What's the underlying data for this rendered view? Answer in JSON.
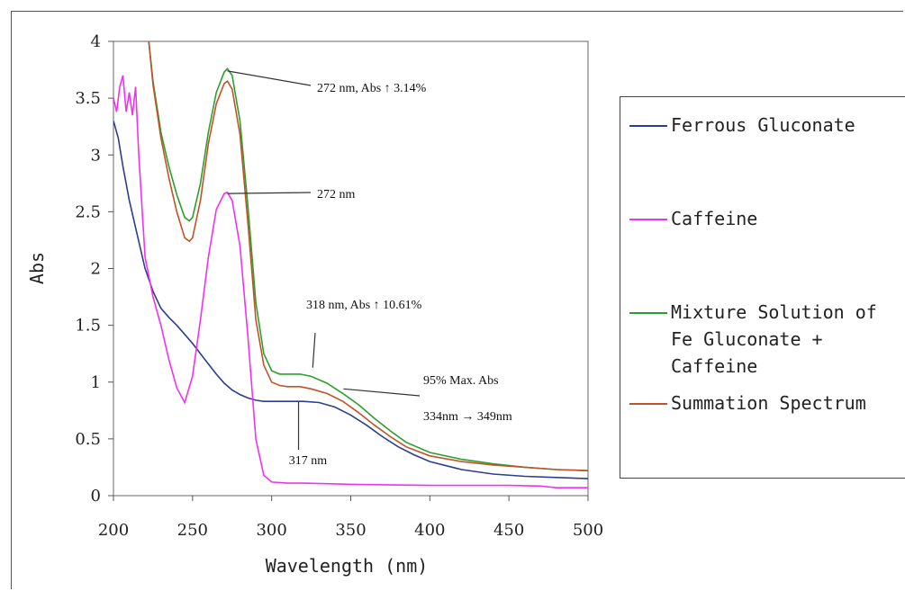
{
  "chart_data": {
    "type": "line",
    "title": "",
    "xlabel": "Wavelength (nm)",
    "ylabel": "Abs",
    "xlim": [
      200,
      500
    ],
    "ylim": [
      0,
      4
    ],
    "xticks": [
      "200",
      "250",
      "300",
      "350",
      "400",
      "450",
      "500"
    ],
    "yticks": [
      "0",
      "0.5",
      "1",
      "1.5",
      "2",
      "2.5",
      "3",
      "3.5",
      "4"
    ],
    "grid": false,
    "legend_position": "right",
    "series": [
      {
        "name": "Ferrous Gluconate",
        "color": "#2a3f8f",
        "x": [
          200,
          203,
          206,
          210,
          215,
          220,
          225,
          230,
          235,
          240,
          245,
          250,
          255,
          260,
          265,
          270,
          275,
          280,
          285,
          290,
          295,
          300,
          310,
          320,
          330,
          340,
          350,
          360,
          370,
          380,
          390,
          400,
          420,
          440,
          460,
          480,
          500
        ],
        "y": [
          3.3,
          3.15,
          2.9,
          2.6,
          2.3,
          2.0,
          1.8,
          1.65,
          1.57,
          1.5,
          1.42,
          1.34,
          1.25,
          1.16,
          1.07,
          0.99,
          0.93,
          0.89,
          0.86,
          0.84,
          0.83,
          0.83,
          0.83,
          0.83,
          0.82,
          0.78,
          0.71,
          0.62,
          0.52,
          0.43,
          0.36,
          0.3,
          0.23,
          0.19,
          0.17,
          0.16,
          0.15
        ]
      },
      {
        "name": "Caffeine",
        "color": "#ee33ee",
        "x": [
          200,
          202,
          204,
          206,
          208,
          210,
          212,
          214,
          216,
          220,
          225,
          230,
          235,
          240,
          245,
          250,
          255,
          260,
          265,
          270,
          272,
          275,
          280,
          285,
          290,
          295,
          300,
          310,
          320,
          350,
          400,
          450,
          470,
          480,
          500
        ],
        "y": [
          3.5,
          3.38,
          3.6,
          3.7,
          3.38,
          3.55,
          3.35,
          3.6,
          3.0,
          2.1,
          1.75,
          1.5,
          1.2,
          0.95,
          0.82,
          1.05,
          1.55,
          2.1,
          2.52,
          2.66,
          2.67,
          2.6,
          2.2,
          1.4,
          0.5,
          0.18,
          0.12,
          0.11,
          0.11,
          0.1,
          0.09,
          0.09,
          0.085,
          0.07,
          0.07
        ]
      },
      {
        "name": "Mixture Solution of\nFe Gluconate +\nCaffeine",
        "color": "#2ca02c",
        "x": [
          222,
          225,
          230,
          235,
          240,
          245,
          248,
          250,
          255,
          260,
          265,
          270,
          272,
          275,
          280,
          285,
          290,
          295,
          300,
          305,
          310,
          318,
          325,
          335,
          345,
          355,
          365,
          375,
          385,
          400,
          420,
          440,
          460,
          480,
          500
        ],
        "y": [
          4.05,
          3.65,
          3.2,
          2.9,
          2.65,
          2.45,
          2.42,
          2.45,
          2.75,
          3.2,
          3.55,
          3.73,
          3.76,
          3.7,
          3.3,
          2.55,
          1.7,
          1.25,
          1.1,
          1.07,
          1.07,
          1.07,
          1.05,
          0.99,
          0.9,
          0.8,
          0.68,
          0.57,
          0.47,
          0.38,
          0.32,
          0.28,
          0.25,
          0.23,
          0.22
        ]
      },
      {
        "name": "Summation Spectrum",
        "color": "#c0522a",
        "x": [
          222,
          225,
          230,
          235,
          240,
          245,
          248,
          250,
          255,
          260,
          265,
          270,
          272,
          275,
          280,
          285,
          290,
          295,
          300,
          305,
          310,
          318,
          325,
          335,
          345,
          355,
          365,
          375,
          385,
          400,
          420,
          440,
          460,
          480,
          500
        ],
        "y": [
          4.05,
          3.62,
          3.15,
          2.8,
          2.5,
          2.27,
          2.24,
          2.27,
          2.6,
          3.1,
          3.45,
          3.63,
          3.65,
          3.58,
          3.18,
          2.4,
          1.55,
          1.15,
          1.0,
          0.97,
          0.96,
          0.96,
          0.94,
          0.9,
          0.83,
          0.73,
          0.62,
          0.52,
          0.43,
          0.35,
          0.3,
          0.27,
          0.25,
          0.23,
          0.22
        ]
      }
    ],
    "annotations": [
      {
        "text": "272 nm, Abs ↑ 3.14%",
        "x": 272,
        "y": 3.74,
        "color": "#2ca02c"
      },
      {
        "text": "272 nm",
        "x": 272,
        "y": 2.66,
        "color": "#ee33ee"
      },
      {
        "text": "318 nm, Abs ↑ 10.61%",
        "x": 318,
        "y": 1.08,
        "color": "#2ca02c"
      },
      {
        "text": "95% Max. Abs",
        "x": 334,
        "y": 0.94,
        "color": "#222222"
      },
      {
        "text": "334nm → 349nm",
        "x": 349,
        "y": 0.86,
        "color": "#222222"
      },
      {
        "text": "317 nm",
        "x": 317,
        "y": 0.83,
        "color": "#2a3f8f"
      }
    ]
  }
}
